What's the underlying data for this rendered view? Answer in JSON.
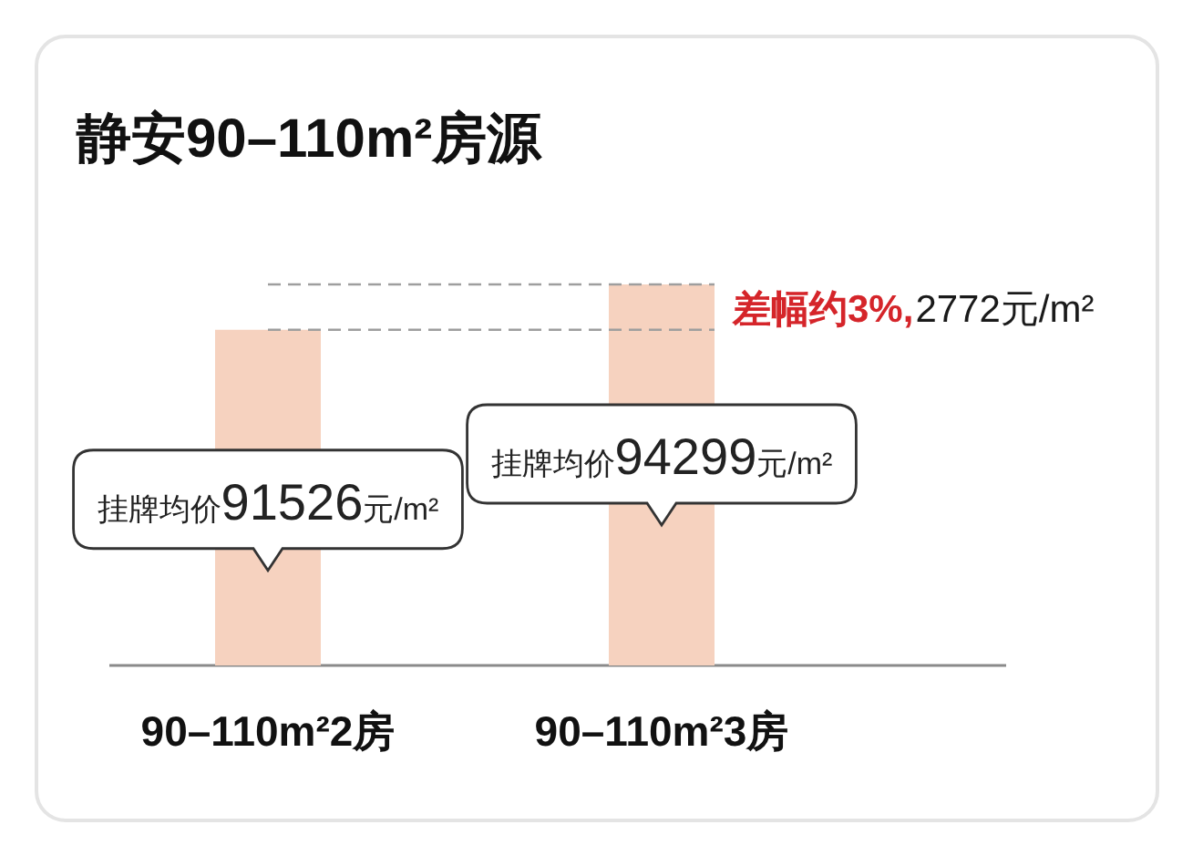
{
  "chart_data": {
    "type": "bar",
    "title": "静安90–110m²房源",
    "categories": [
      "90–110m²2房",
      "90–110m²3房"
    ],
    "values": [
      91526,
      94299
    ],
    "color": "#f6d2bf",
    "ylim": [
      71000,
      94299
    ],
    "tick_labels": "x",
    "value_labels": [
      "挂牌均价91526元/m²",
      "挂牌均价94299元/m²"
    ],
    "ref_lines": [
      {
        "axis": "y",
        "value": 94299,
        "color": "#9e9e9e",
        "line_style": "dashed"
      },
      {
        "axis": "y",
        "value": 91526,
        "color": "#9e9e9e",
        "line_style": "dashed"
      }
    ],
    "annotations": [
      "差幅约3%,",
      "2772元/m²"
    ]
  }
}
